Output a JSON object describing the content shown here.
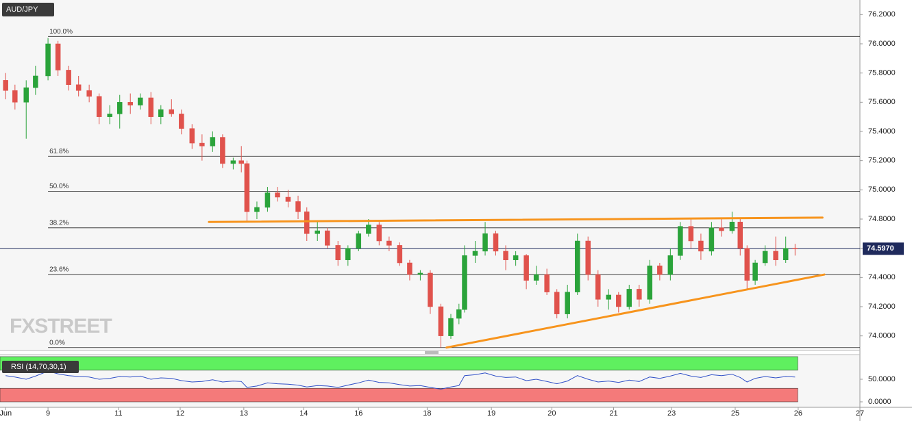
{
  "chart_data": [
    {
      "type": "candlestick",
      "title": "AUD/JPY",
      "xlim": [
        -0.09,
        13.7
      ],
      "ylim": [
        73.9,
        76.3
      ],
      "yticks": [
        {
          "value": 74.0,
          "label": "74.0000"
        },
        {
          "value": 74.2,
          "label": "74.2000"
        },
        {
          "value": 74.4,
          "label": "74.4000"
        },
        {
          "value": 74.6,
          "label": "74.6000"
        },
        {
          "value": 74.8,
          "label": "74.8000"
        },
        {
          "value": 75.0,
          "label": "75.0000"
        },
        {
          "value": 75.2,
          "label": "75.2000"
        },
        {
          "value": 75.4,
          "label": "75.4000"
        },
        {
          "value": 75.6,
          "label": "75.6000"
        },
        {
          "value": 75.8,
          "label": "75.8000"
        },
        {
          "value": 76.0,
          "label": "76.0000"
        },
        {
          "value": 76.2,
          "label": "76.2000"
        }
      ],
      "up_color": "#2aa33a",
      "down_color": "#e0524c",
      "x": [
        0.0,
        0.15,
        0.33,
        0.48,
        0.68,
        0.84,
        1.01,
        1.17,
        1.34,
        1.5,
        1.67,
        1.83,
        2.0,
        2.16,
        2.33,
        2.49,
        2.66,
        2.82,
        2.99,
        3.15,
        3.32,
        3.48,
        3.65,
        3.78,
        3.87,
        4.03,
        4.2,
        4.36,
        4.53,
        4.69,
        4.83,
        5.0,
        5.16,
        5.33,
        5.49,
        5.66,
        5.82,
        5.99,
        6.15,
        6.32,
        6.48,
        6.65,
        6.81,
        6.98,
        7.14,
        7.27,
        7.36,
        7.53,
        7.69,
        7.86,
        8.02,
        8.18,
        8.35,
        8.51,
        8.68,
        8.84,
        9.01,
        9.17,
        9.34,
        9.5,
        9.67,
        9.83,
        10.0,
        10.16,
        10.33,
        10.49,
        10.66,
        10.82,
        10.99,
        11.15,
        11.32,
        11.48,
        11.65,
        11.78,
        11.89,
        12.02,
        12.18,
        12.35,
        12.51,
        12.66
      ],
      "open": [
        75.75,
        75.68,
        75.6,
        75.7,
        75.78,
        76.0,
        75.82,
        75.72,
        75.68,
        75.64,
        75.5,
        75.52,
        75.6,
        75.58,
        75.63,
        75.5,
        75.55,
        75.52,
        75.42,
        75.32,
        75.3,
        75.36,
        75.18,
        75.2,
        75.18,
        74.85,
        74.88,
        74.98,
        74.95,
        74.92,
        74.85,
        74.7,
        74.72,
        74.62,
        74.52,
        74.6,
        74.7,
        74.76,
        74.65,
        74.62,
        74.5,
        74.42,
        74.43,
        74.2,
        74.0,
        74.12,
        74.18,
        74.55,
        74.58,
        74.7,
        74.58,
        74.52,
        74.55,
        74.38,
        74.42,
        74.3,
        74.15,
        74.3,
        74.65,
        74.42,
        74.25,
        74.28,
        74.2,
        74.32,
        74.25,
        74.48,
        74.42,
        74.55,
        74.75,
        74.65,
        74.58,
        74.74,
        74.72,
        74.78,
        74.6,
        74.38,
        74.5,
        74.58,
        74.52,
        74.6
      ],
      "high": [
        75.8,
        75.72,
        75.75,
        75.85,
        76.04,
        76.02,
        75.85,
        75.78,
        75.72,
        75.66,
        75.58,
        75.65,
        75.66,
        75.66,
        75.67,
        75.58,
        75.62,
        75.55,
        75.45,
        75.38,
        75.4,
        75.38,
        75.22,
        75.3,
        75.2,
        74.92,
        75.02,
        75.02,
        75.0,
        74.96,
        74.88,
        74.78,
        74.74,
        74.65,
        74.62,
        74.72,
        74.8,
        74.78,
        74.68,
        74.64,
        74.52,
        74.45,
        74.45,
        74.22,
        74.15,
        74.22,
        74.62,
        74.65,
        74.78,
        74.72,
        74.62,
        74.58,
        74.56,
        74.48,
        74.46,
        74.32,
        74.35,
        74.7,
        74.68,
        74.45,
        74.32,
        74.3,
        74.35,
        74.35,
        74.52,
        74.5,
        74.6,
        74.78,
        74.8,
        74.7,
        74.78,
        74.8,
        74.85,
        74.8,
        74.62,
        74.52,
        74.62,
        74.68,
        74.68,
        74.63
      ],
      "low": [
        75.62,
        75.55,
        75.35,
        75.65,
        75.75,
        75.78,
        75.68,
        75.64,
        75.6,
        75.45,
        75.45,
        75.42,
        75.52,
        75.55,
        75.45,
        75.45,
        75.5,
        75.38,
        75.28,
        75.2,
        75.26,
        75.15,
        75.14,
        75.12,
        74.78,
        74.8,
        74.85,
        74.92,
        74.88,
        74.8,
        74.65,
        74.65,
        74.6,
        74.48,
        74.48,
        74.58,
        74.68,
        74.62,
        74.58,
        74.48,
        74.38,
        74.38,
        74.15,
        73.92,
        73.98,
        74.08,
        74.16,
        74.5,
        74.55,
        74.55,
        74.45,
        74.48,
        74.32,
        74.35,
        74.28,
        74.12,
        74.12,
        74.28,
        74.38,
        74.2,
        74.18,
        74.16,
        74.18,
        74.2,
        74.22,
        74.38,
        74.38,
        74.52,
        74.6,
        74.52,
        74.55,
        74.68,
        74.7,
        74.55,
        74.32,
        74.35,
        74.48,
        74.48,
        74.5,
        74.55
      ],
      "close": [
        75.68,
        75.6,
        75.7,
        75.78,
        76.0,
        75.82,
        75.72,
        75.68,
        75.64,
        75.5,
        75.52,
        75.6,
        75.58,
        75.63,
        75.5,
        75.55,
        75.52,
        75.42,
        75.32,
        75.3,
        75.36,
        75.18,
        75.2,
        75.18,
        74.85,
        74.88,
        74.98,
        74.95,
        74.92,
        74.85,
        74.7,
        74.72,
        74.62,
        74.52,
        74.6,
        74.7,
        74.76,
        74.65,
        74.62,
        74.5,
        74.42,
        74.43,
        74.2,
        74.0,
        74.12,
        74.18,
        74.55,
        74.58,
        74.7,
        74.58,
        74.52,
        74.55,
        74.38,
        74.42,
        74.3,
        74.15,
        74.3,
        74.65,
        74.42,
        74.25,
        74.28,
        74.2,
        74.32,
        74.25,
        74.48,
        74.42,
        74.55,
        74.75,
        74.65,
        74.58,
        74.74,
        74.72,
        74.78,
        74.6,
        74.38,
        74.5,
        74.58,
        74.52,
        74.6,
        74.597
      ],
      "last_price": 74.597,
      "last_price_label": "74.5970",
      "fib_levels": [
        {
          "value": 76.05,
          "label": "100.0%"
        },
        {
          "value": 75.23,
          "label": "61.8%"
        },
        {
          "value": 74.99,
          "label": "50.0%"
        },
        {
          "value": 74.74,
          "label": "38.2%"
        },
        {
          "value": 74.42,
          "label": "23.6%"
        },
        {
          "value": 73.92,
          "label": "0.0%"
        }
      ],
      "trendlines": [
        {
          "color": "#f7941d",
          "x": [
            3.26,
            13.1
          ],
          "y": [
            74.78,
            74.81
          ]
        },
        {
          "color": "#f7941d",
          "x": [
            7.07,
            13.13
          ],
          "y": [
            73.92,
            74.42
          ]
        }
      ],
      "watermark": "FXSTREET"
    },
    {
      "type": "line",
      "title": "RSI (14,70,30,1)",
      "color": "#2f4fc7",
      "xlim": [
        -0.09,
        13.7
      ],
      "ylim": [
        0,
        100
      ],
      "overbought": 70,
      "oversold": 30,
      "yticks": [
        {
          "value": 0,
          "label": "0.0000"
        },
        {
          "value": 50,
          "label": "50.0000"
        }
      ],
      "xticks": [
        {
          "value": 0.0,
          "label": "Jun"
        },
        {
          "value": 0.68,
          "label": "9"
        },
        {
          "value": 1.81,
          "label": "11"
        },
        {
          "value": 2.8,
          "label": "12"
        },
        {
          "value": 3.82,
          "label": "13"
        },
        {
          "value": 4.78,
          "label": "14"
        },
        {
          "value": 5.66,
          "label": "16"
        },
        {
          "value": 6.76,
          "label": "18"
        },
        {
          "value": 7.79,
          "label": "19"
        },
        {
          "value": 8.76,
          "label": "20"
        },
        {
          "value": 9.75,
          "label": "21"
        },
        {
          "value": 10.68,
          "label": "23"
        },
        {
          "value": 11.7,
          "label": "25"
        },
        {
          "value": 12.71,
          "label": "26"
        },
        {
          "value": 13.7,
          "label": "27"
        }
      ],
      "x": [
        0.0,
        0.15,
        0.33,
        0.48,
        0.68,
        0.84,
        1.01,
        1.17,
        1.34,
        1.5,
        1.67,
        1.83,
        2.0,
        2.16,
        2.33,
        2.49,
        2.66,
        2.82,
        2.99,
        3.15,
        3.32,
        3.48,
        3.65,
        3.78,
        3.87,
        4.03,
        4.2,
        4.36,
        4.53,
        4.69,
        4.83,
        5.0,
        5.16,
        5.33,
        5.49,
        5.66,
        5.82,
        5.99,
        6.15,
        6.32,
        6.48,
        6.65,
        6.81,
        6.98,
        7.14,
        7.27,
        7.36,
        7.53,
        7.69,
        7.86,
        8.02,
        8.18,
        8.35,
        8.51,
        8.68,
        8.84,
        9.01,
        9.17,
        9.34,
        9.5,
        9.67,
        9.83,
        10.0,
        10.16,
        10.33,
        10.49,
        10.66,
        10.82,
        10.99,
        11.15,
        11.32,
        11.48,
        11.65,
        11.78,
        11.89,
        12.02,
        12.18,
        12.35,
        12.51,
        12.66
      ],
      "values": [
        58,
        55,
        50,
        57,
        68,
        62,
        58,
        56,
        55,
        50,
        52,
        56,
        55,
        57,
        50,
        53,
        52,
        47,
        44,
        45,
        49,
        44,
        46,
        45,
        32,
        35,
        42,
        40,
        39,
        37,
        33,
        36,
        35,
        32,
        37,
        42,
        48,
        43,
        42,
        38,
        35,
        36,
        32,
        28,
        33,
        36,
        58,
        60,
        64,
        57,
        54,
        55,
        47,
        50,
        45,
        40,
        46,
        58,
        50,
        44,
        46,
        43,
        48,
        45,
        55,
        52,
        57,
        63,
        57,
        54,
        60,
        58,
        61,
        54,
        44,
        52,
        56,
        53,
        56,
        55
      ]
    }
  ]
}
